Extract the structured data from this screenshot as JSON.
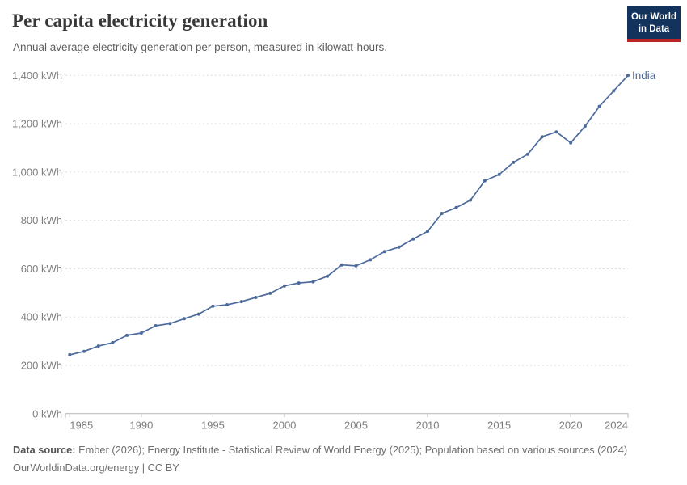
{
  "header": {
    "title": "Per capita electricity generation",
    "subtitle": "Annual average electricity generation per person, measured in kilowatt-hours."
  },
  "logo": {
    "line1": "Our World",
    "line2": "in Data"
  },
  "entity_label": "India",
  "colors": {
    "line": "#4c6a9c",
    "entity_label": "#4c6a9c",
    "grid": "#dcdcdc",
    "axis": "#b3b3b3",
    "tick_text": "#7d7d7d",
    "logo_bg": "#14335c",
    "logo_stripe": "#bb2625"
  },
  "chart_data": {
    "type": "line",
    "title": "Per capita electricity generation",
    "subtitle": "Annual average electricity generation per person, measured in kilowatt-hours.",
    "unit": "kWh",
    "xlabel": "",
    "ylabel": "",
    "xlim": [
      1985,
      2024
    ],
    "ylim": [
      0,
      1400
    ],
    "grid": "horizontal-dashed",
    "legend_position": "line-end-label",
    "x_ticks": [
      1985,
      1990,
      1995,
      2000,
      2005,
      2010,
      2015,
      2020,
      2024
    ],
    "y_ticks": [
      {
        "value": 0,
        "label": "0 kWh"
      },
      {
        "value": 200,
        "label": "200 kWh"
      },
      {
        "value": 400,
        "label": "400 kWh"
      },
      {
        "value": 600,
        "label": "600 kWh"
      },
      {
        "value": 800,
        "label": "800 kWh"
      },
      {
        "value": 1000,
        "label": "1,000 kWh"
      },
      {
        "value": 1200,
        "label": "1,200 kWh"
      },
      {
        "value": 1400,
        "label": "1,400 kWh"
      }
    ],
    "series": [
      {
        "name": "India",
        "x": [
          1985,
          1986,
          1987,
          1988,
          1989,
          1990,
          1991,
          1992,
          1993,
          1994,
          1995,
          1996,
          1997,
          1998,
          1999,
          2000,
          2001,
          2002,
          2003,
          2004,
          2005,
          2006,
          2007,
          2008,
          2009,
          2010,
          2011,
          2012,
          2013,
          2014,
          2015,
          2016,
          2017,
          2018,
          2019,
          2020,
          2021,
          2022,
          2023,
          2024
        ],
        "values": [
          244,
          258,
          280,
          294,
          324,
          334,
          364,
          373,
          393,
          412,
          445,
          451,
          464,
          481,
          498,
          529,
          541,
          546,
          569,
          616,
          612,
          637,
          671,
          689,
          723,
          755,
          829,
          853,
          884,
          964,
          990,
          1040,
          1074,
          1146,
          1166,
          1121,
          1190,
          1272,
          1336,
          1400
        ]
      }
    ]
  },
  "footer": {
    "source_label": "Data source:",
    "source_text": " Ember (2026); Energy Institute - Statistical Review of World Energy (2025); Population based on various sources (2024)",
    "note_text": "OurWorldinData.org/energy | CC BY"
  }
}
